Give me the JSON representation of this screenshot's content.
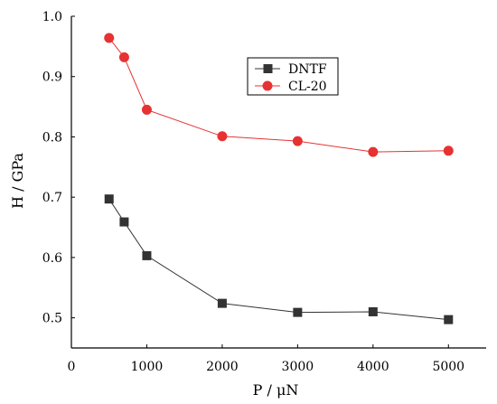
{
  "chart_data": {
    "type": "line",
    "title": "",
    "xlabel": "P / μN",
    "ylabel": "H / GPa",
    "xlim": [
      0,
      5500
    ],
    "ylim": [
      0.45,
      1.0
    ],
    "xticks": [
      0,
      1000,
      2000,
      3000,
      4000,
      5000
    ],
    "yticks": [
      0.5,
      0.6,
      0.7,
      0.8,
      0.9,
      1.0
    ],
    "x_tick_labels": [
      "0",
      "1000",
      "2000",
      "3000",
      "4000",
      "5000"
    ],
    "y_tick_labels": [
      "0.5",
      "0.6",
      "0.7",
      "0.8",
      "0.9",
      "1.0"
    ],
    "grid": false,
    "legend": {
      "placement": "top-center"
    },
    "series": [
      {
        "name": "DNTF",
        "color": "#333333",
        "marker": "square",
        "x": [
          500,
          700,
          1000,
          2000,
          3000,
          4000,
          5000
        ],
        "y": [
          0.697,
          0.659,
          0.603,
          0.524,
          0.509,
          0.51,
          0.497
        ]
      },
      {
        "name": "CL-20",
        "color": "#e63232",
        "marker": "circle",
        "x": [
          500,
          700,
          1000,
          2000,
          3000,
          4000,
          5000
        ],
        "y": [
          0.964,
          0.932,
          0.845,
          0.801,
          0.793,
          0.775,
          0.777
        ]
      }
    ]
  }
}
